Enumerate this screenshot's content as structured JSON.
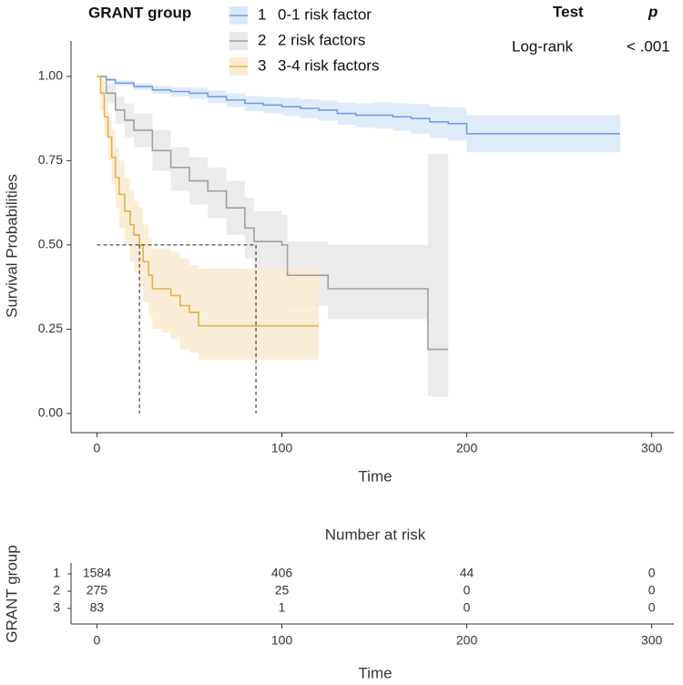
{
  "chart_data": {
    "type": "survival",
    "legend_title": "GRANT group",
    "xlabel": "Time",
    "ylabel": "Survival Probabilities",
    "xlim": [
      -14,
      312
    ],
    "ylim": [
      -0.057,
      1.105
    ],
    "xticks": [
      0,
      100,
      200,
      300
    ],
    "yticks": [
      {
        "value": 0,
        "label": "0.00"
      },
      {
        "value": 0.25,
        "label": "0.25"
      },
      {
        "value": 0.5,
        "label": "0.50"
      },
      {
        "value": 0.75,
        "label": "0.75"
      },
      {
        "value": 1,
        "label": "1.00"
      }
    ],
    "series": [
      {
        "key": "1",
        "name": "0-1 risk factor",
        "color": "#6f9ee8",
        "band_color": "#dbe7f8",
        "x": [
          0,
          5,
          10,
          20,
          30,
          40,
          50,
          60,
          70,
          80,
          90,
          100,
          110,
          120,
          130,
          140,
          150,
          160,
          170,
          180,
          190,
          200,
          283
        ],
        "values": [
          1,
          0.99,
          0.98,
          0.97,
          0.96,
          0.955,
          0.95,
          0.94,
          0.93,
          0.92,
          0.915,
          0.91,
          0.905,
          0.9,
          0.89,
          0.885,
          0.885,
          0.88,
          0.875,
          0.865,
          0.86,
          0.83,
          0.83
        ],
        "ci_lower": [
          1,
          0.985,
          0.972,
          0.96,
          0.948,
          0.94,
          0.933,
          0.921,
          0.909,
          0.897,
          0.89,
          0.883,
          0.876,
          0.869,
          0.856,
          0.848,
          0.845,
          0.838,
          0.83,
          0.817,
          0.81,
          0.775,
          0.775
        ],
        "ci_upper": [
          1,
          0.995,
          0.988,
          0.98,
          0.972,
          0.968,
          0.966,
          0.958,
          0.95,
          0.942,
          0.939,
          0.936,
          0.933,
          0.929,
          0.922,
          0.92,
          0.923,
          0.92,
          0.918,
          0.91,
          0.908,
          0.885,
          0.885
        ]
      },
      {
        "key": "2",
        "name": "2 risk factors",
        "color": "#a0a0a0",
        "band_color": "#e8e8e8",
        "x": [
          0,
          5,
          10,
          15,
          20,
          30,
          40,
          50,
          60,
          70,
          80,
          85,
          100,
          103,
          125,
          178,
          179,
          190
        ],
        "values": [
          1,
          0.95,
          0.9,
          0.87,
          0.84,
          0.78,
          0.73,
          0.69,
          0.66,
          0.61,
          0.55,
          0.51,
          0.5,
          0.41,
          0.37,
          0.37,
          0.19,
          0.19
        ],
        "ci_lower": [
          1,
          0.92,
          0.86,
          0.82,
          0.79,
          0.72,
          0.66,
          0.62,
          0.58,
          0.53,
          0.46,
          0.42,
          0.41,
          0.32,
          0.28,
          0.27,
          0.05,
          0.05
        ],
        "ci_upper": [
          1,
          0.98,
          0.94,
          0.92,
          0.89,
          0.84,
          0.79,
          0.76,
          0.73,
          0.69,
          0.64,
          0.6,
          0.59,
          0.51,
          0.5,
          0.5,
          0.77,
          0.77
        ]
      },
      {
        "key": "3",
        "name": "3-4 risk factors",
        "color": "#e8b04a",
        "band_color": "#f9ebd2",
        "x": [
          0,
          2,
          4,
          6,
          8,
          10,
          12,
          15,
          18,
          20,
          23,
          25,
          28,
          30,
          35,
          40,
          45,
          50,
          55,
          120
        ],
        "values": [
          1,
          0.95,
          0.88,
          0.82,
          0.76,
          0.7,
          0.65,
          0.6,
          0.56,
          0.53,
          0.5,
          0.45,
          0.41,
          0.37,
          0.37,
          0.35,
          0.32,
          0.3,
          0.26,
          0.26
        ],
        "ci_lower": [
          1,
          0.9,
          0.82,
          0.75,
          0.68,
          0.61,
          0.55,
          0.5,
          0.45,
          0.42,
          0.38,
          0.33,
          0.29,
          0.25,
          0.24,
          0.22,
          0.19,
          0.18,
          0.16,
          0.12
        ],
        "ci_upper": [
          1,
          0.99,
          0.94,
          0.89,
          0.84,
          0.79,
          0.75,
          0.7,
          0.66,
          0.63,
          0.61,
          0.56,
          0.52,
          0.49,
          0.49,
          0.48,
          0.46,
          0.44,
          0.43,
          0.43
        ]
      }
    ],
    "median_line": {
      "y": 0.5,
      "x": [
        23,
        86
      ]
    },
    "test_table": {
      "headers": [
        "Test",
        "p"
      ],
      "row": [
        "Log-rank",
        "< .001"
      ]
    },
    "risk_table": {
      "title": "Number at risk",
      "ylabel": "GRANT group",
      "xlabel": "Time",
      "times": [
        0,
        100,
        200,
        300
      ],
      "rows": [
        {
          "key": "1",
          "values": [
            1584,
            406,
            44,
            0
          ]
        },
        {
          "key": "2",
          "values": [
            275,
            25,
            0,
            0
          ]
        },
        {
          "key": "3",
          "values": [
            83,
            1,
            0,
            0
          ]
        }
      ]
    }
  }
}
